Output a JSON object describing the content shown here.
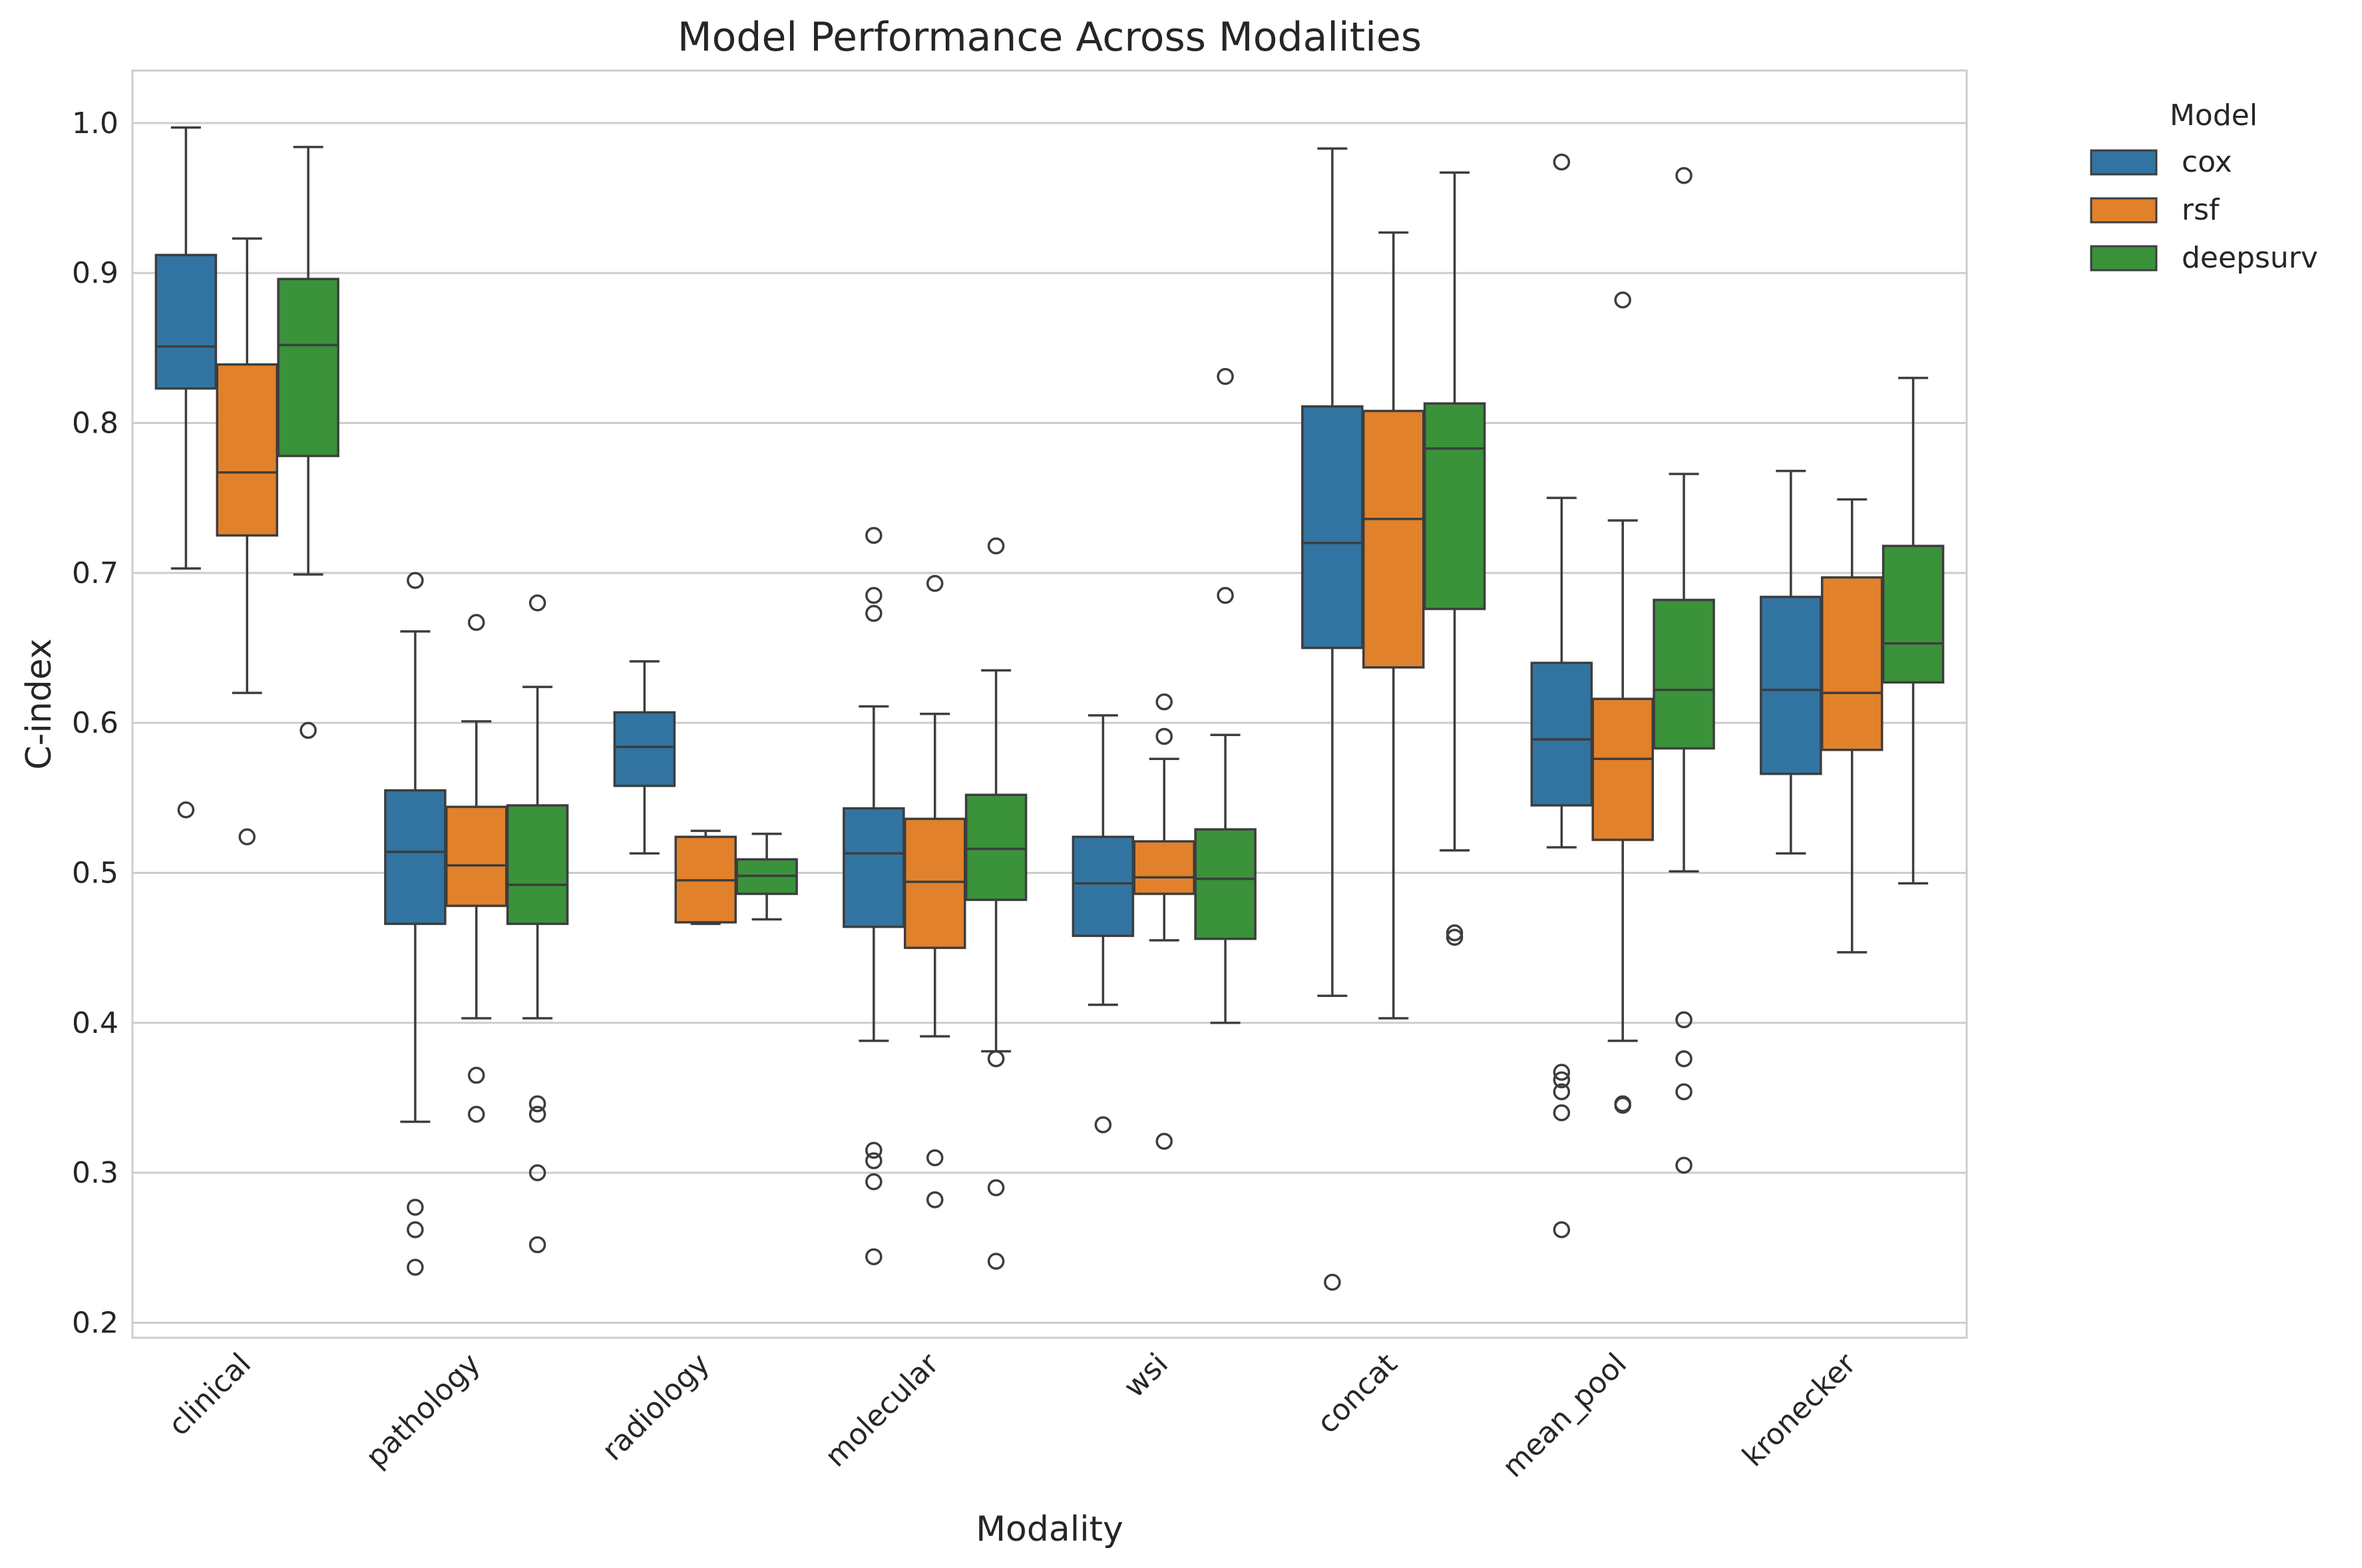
{
  "chart_data": {
    "type": "boxplot",
    "title": "Model Performance Across Modalities",
    "xlabel": "Modality",
    "ylabel": "C-index",
    "ylim": [
      0.19,
      1.035
    ],
    "yticks": [
      0.2,
      0.3,
      0.4,
      0.5,
      0.6,
      0.7,
      0.8,
      0.9,
      1.0
    ],
    "ytick_labels": [
      "0.2",
      "0.3",
      "0.4",
      "0.5",
      "0.6",
      "0.7",
      "0.8",
      "0.9",
      "1.0"
    ],
    "grid": "horizontal",
    "legend": {
      "title": "Model",
      "placement": "outside-top-right"
    },
    "categories": [
      "clinical",
      "pathology",
      "radiology",
      "molecular",
      "wsi",
      "concat",
      "mean_pool",
      "kronecker"
    ],
    "colors": {
      "cox": "#3274a1",
      "rsf": "#e1812c",
      "deepsurv": "#3a923a"
    },
    "series": [
      {
        "name": "cox",
        "boxes": [
          {
            "whislo": 0.703,
            "q1": 0.823,
            "med": 0.851,
            "q3": 0.912,
            "whishi": 0.997,
            "fliers": [
              0.542
            ]
          },
          {
            "whislo": 0.334,
            "q1": 0.466,
            "med": 0.514,
            "q3": 0.555,
            "whishi": 0.661,
            "fliers": [
              0.695,
              0.277,
              0.262,
              0.237
            ]
          },
          {
            "whislo": 0.513,
            "q1": 0.558,
            "med": 0.584,
            "q3": 0.607,
            "whishi": 0.641,
            "fliers": []
          },
          {
            "whislo": 0.388,
            "q1": 0.464,
            "med": 0.513,
            "q3": 0.543,
            "whishi": 0.611,
            "fliers": [
              0.725,
              0.685,
              0.673,
              0.315,
              0.308,
              0.294,
              0.244
            ]
          },
          {
            "whislo": 0.412,
            "q1": 0.458,
            "med": 0.493,
            "q3": 0.524,
            "whishi": 0.605,
            "fliers": [
              0.332
            ]
          },
          {
            "whislo": 0.418,
            "q1": 0.65,
            "med": 0.72,
            "q3": 0.811,
            "whishi": 0.983,
            "fliers": [
              0.227
            ]
          },
          {
            "whislo": 0.517,
            "q1": 0.545,
            "med": 0.589,
            "q3": 0.64,
            "whishi": 0.75,
            "fliers": [
              0.974,
              0.367,
              0.362,
              0.354,
              0.34,
              0.262
            ]
          },
          {
            "whislo": 0.513,
            "q1": 0.566,
            "med": 0.622,
            "q3": 0.684,
            "whishi": 0.768,
            "fliers": []
          }
        ]
      },
      {
        "name": "rsf",
        "boxes": [
          {
            "whislo": 0.62,
            "q1": 0.725,
            "med": 0.767,
            "q3": 0.839,
            "whishi": 0.923,
            "fliers": [
              0.524
            ]
          },
          {
            "whislo": 0.403,
            "q1": 0.478,
            "med": 0.505,
            "q3": 0.544,
            "whishi": 0.601,
            "fliers": [
              0.667,
              0.365,
              0.339
            ]
          },
          {
            "whislo": 0.466,
            "q1": 0.467,
            "med": 0.495,
            "q3": 0.524,
            "whishi": 0.528,
            "fliers": []
          },
          {
            "whislo": 0.391,
            "q1": 0.45,
            "med": 0.494,
            "q3": 0.536,
            "whishi": 0.606,
            "fliers": [
              0.693,
              0.31,
              0.282
            ]
          },
          {
            "whislo": 0.455,
            "q1": 0.486,
            "med": 0.497,
            "q3": 0.521,
            "whishi": 0.576,
            "fliers": [
              0.614,
              0.591,
              0.321
            ]
          },
          {
            "whislo": 0.403,
            "q1": 0.637,
            "med": 0.736,
            "q3": 0.808,
            "whishi": 0.927,
            "fliers": []
          },
          {
            "whislo": 0.388,
            "q1": 0.522,
            "med": 0.576,
            "q3": 0.616,
            "whishi": 0.735,
            "fliers": [
              0.882,
              0.346,
              0.345
            ]
          },
          {
            "whislo": 0.447,
            "q1": 0.582,
            "med": 0.62,
            "q3": 0.697,
            "whishi": 0.749,
            "fliers": []
          }
        ]
      },
      {
        "name": "deepsurv",
        "boxes": [
          {
            "whislo": 0.699,
            "q1": 0.778,
            "med": 0.852,
            "q3": 0.896,
            "whishi": 0.984,
            "fliers": [
              0.595
            ]
          },
          {
            "whislo": 0.403,
            "q1": 0.466,
            "med": 0.492,
            "q3": 0.545,
            "whishi": 0.624,
            "fliers": [
              0.68,
              0.346,
              0.339,
              0.3,
              0.252
            ]
          },
          {
            "whislo": 0.469,
            "q1": 0.486,
            "med": 0.498,
            "q3": 0.509,
            "whishi": 0.526,
            "fliers": []
          },
          {
            "whislo": 0.381,
            "q1": 0.482,
            "med": 0.516,
            "q3": 0.552,
            "whishi": 0.635,
            "fliers": [
              0.718,
              0.376,
              0.29,
              0.241
            ]
          },
          {
            "whislo": 0.4,
            "q1": 0.456,
            "med": 0.496,
            "q3": 0.529,
            "whishi": 0.592,
            "fliers": [
              0.831,
              0.685
            ]
          },
          {
            "whislo": 0.515,
            "q1": 0.676,
            "med": 0.783,
            "q3": 0.813,
            "whishi": 0.967,
            "fliers": [
              0.46,
              0.457
            ]
          },
          {
            "whislo": 0.501,
            "q1": 0.583,
            "med": 0.622,
            "q3": 0.682,
            "whishi": 0.766,
            "fliers": [
              0.965,
              0.402,
              0.376,
              0.354,
              0.305
            ]
          },
          {
            "whislo": 0.493,
            "q1": 0.627,
            "med": 0.653,
            "q3": 0.718,
            "whishi": 0.83,
            "fliers": []
          }
        ]
      }
    ]
  }
}
